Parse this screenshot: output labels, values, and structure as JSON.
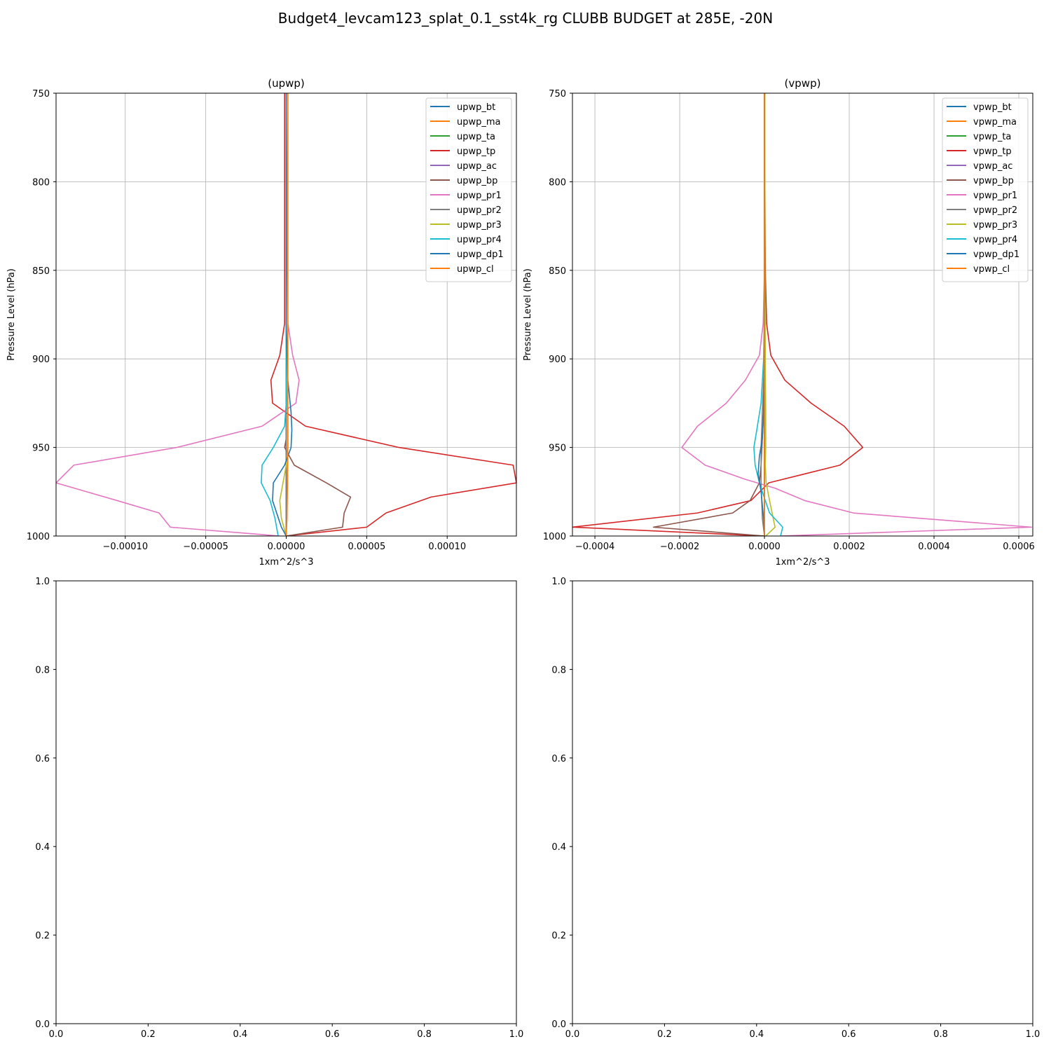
{
  "figure": {
    "title": "Budget4_levcam123_splat_0.1_sst4k_rg CLUBB BUDGET at 285E, -20N"
  },
  "colors": {
    "c0": "#1f77b4",
    "c1": "#ff7f0e",
    "c2": "#2ca02c",
    "c3": "#d62728",
    "c4": "#9467bd",
    "c5": "#8c564b",
    "c6": "#e377c2",
    "c7": "#7f7f7f",
    "c8": "#bcbd22",
    "c9": "#17becf",
    "grid": "#b0b0b0"
  },
  "chart_data": [
    {
      "type": "line",
      "title": "(upwp)",
      "xlabel": "1xm^2/s^3",
      "ylabel": "Pressure Level (hPa)",
      "xlim": [
        -0.000143,
        0.000143
      ],
      "ylim": [
        1000,
        750
      ],
      "xticks": [
        -0.0001,
        -5e-05,
        0,
        5e-05,
        0.0001
      ],
      "xtick_labels": [
        "−0.00010",
        "−0.00005",
        "0.00000",
        "0.00005",
        "0.00010"
      ],
      "yticks": [
        750,
        800,
        850,
        900,
        950,
        1000
      ],
      "ytick_labels": [
        "750",
        "800",
        "850",
        "900",
        "950",
        "1000"
      ],
      "grid": true,
      "legend_position": "top-right",
      "series": [
        {
          "name": "upwp_bt",
          "color": "#1f77b4",
          "x": [
            0,
            0,
            0,
            0,
            0,
            0,
            0,
            0,
            0,
            0
          ],
          "y": [
            750,
            850,
            900,
            930,
            950,
            960,
            970,
            985,
            995,
            1000
          ]
        },
        {
          "name": "upwp_ma",
          "color": "#ff7f0e",
          "x": [
            0,
            0,
            0,
            0,
            0,
            0,
            0,
            0,
            0,
            0
          ],
          "y": [
            750,
            850,
            900,
            930,
            950,
            960,
            970,
            985,
            995,
            1000
          ]
        },
        {
          "name": "upwp_ta",
          "color": "#2ca02c",
          "x": [
            0,
            0,
            0,
            0,
            0,
            0,
            0,
            0,
            0,
            0
          ],
          "y": [
            750,
            850,
            900,
            930,
            950,
            960,
            970,
            985,
            995,
            1000
          ]
        },
        {
          "name": "upwp_tp",
          "color": "#d62728",
          "x": [
            -1e-06,
            -1e-06,
            -1e-06,
            -4e-06,
            -9.5e-06,
            -8.5e-06,
            1.2e-05,
            7e-05,
            0.000141,
            0.000143,
            9e-05,
            6.2e-05,
            5e-05,
            0
          ],
          "y": [
            750,
            850,
            880,
            898,
            912,
            925,
            938,
            950,
            960,
            970,
            978,
            987,
            995,
            1000
          ]
        },
        {
          "name": "upwp_ac",
          "color": "#9467bd",
          "x": [
            0,
            0,
            0,
            0,
            0,
            0,
            0,
            0
          ],
          "y": [
            750,
            850,
            900,
            930,
            950,
            970,
            990,
            1000
          ]
        },
        {
          "name": "upwp_bp",
          "color": "#8c564b",
          "x": [
            0,
            0,
            0,
            0,
            0,
            -1e-06,
            5e-06,
            2.5e-05,
            4e-05,
            3.6e-05,
            3.5e-05,
            0
          ],
          "y": [
            750,
            850,
            900,
            930,
            945,
            950,
            960,
            970,
            978,
            987,
            995,
            1000
          ]
        },
        {
          "name": "upwp_pr1",
          "color": "#e377c2",
          "x": [
            0,
            1e-06,
            4e-06,
            8e-06,
            6e-06,
            -1.5e-05,
            -6.8e-05,
            -0.000132,
            -0.000143,
            -0.000105,
            -7.9e-05,
            -7.2e-05,
            -4e-06
          ],
          "y": [
            750,
            880,
            898,
            912,
            925,
            938,
            950,
            960,
            970,
            980,
            987,
            995,
            1000
          ]
        },
        {
          "name": "upwp_pr2",
          "color": "#7f7f7f",
          "x": [
            0,
            0,
            0,
            0,
            0,
            0,
            0,
            0
          ],
          "y": [
            750,
            850,
            900,
            930,
            950,
            970,
            990,
            1000
          ]
        },
        {
          "name": "upwp_pr3",
          "color": "#bcbd22",
          "x": [
            0,
            0,
            0,
            1e-06,
            1e-06,
            0,
            -2e-06,
            -4e-06,
            -3e-06,
            0
          ],
          "y": [
            750,
            850,
            900,
            930,
            950,
            960,
            970,
            980,
            990,
            1000
          ]
        },
        {
          "name": "upwp_pr4",
          "color": "#17becf",
          "x": [
            0,
            0,
            0,
            -1e-06,
            -8e-06,
            -1.5e-05,
            -1.55e-05,
            -1e-05,
            -7e-06,
            -5e-06
          ],
          "y": [
            750,
            880,
            925,
            938,
            950,
            960,
            970,
            980,
            990,
            1000
          ]
        },
        {
          "name": "upwp_dp1",
          "color": "#1f77b4",
          "x": [
            0,
            0,
            1e-06,
            3e-06,
            3.5e-06,
            3e-06,
            -1e-06,
            -8e-06,
            -8.5e-06,
            -3e-06,
            0
          ],
          "y": [
            750,
            880,
            912,
            930,
            940,
            950,
            960,
            970,
            980,
            995,
            1000
          ]
        },
        {
          "name": "upwp_cl",
          "color": "#ff7f0e",
          "x": [
            1e-06,
            1e-06,
            1e-06,
            1e-06,
            1e-06,
            8e-07,
            5e-07,
            0
          ],
          "y": [
            750,
            850,
            900,
            930,
            950,
            970,
            990,
            1000
          ]
        }
      ]
    },
    {
      "type": "line",
      "title": "(vpwp)",
      "xlabel": "1xm^2/s^3",
      "ylabel": "Pressure Level (hPa)",
      "xlim": [
        -0.000453,
        0.000633
      ],
      "ylim": [
        1000,
        750
      ],
      "xticks": [
        -0.0004,
        -0.0002,
        0,
        0.0002,
        0.0004,
        0.0006
      ],
      "xtick_labels": [
        "−0.0004",
        "−0.0002",
        "0.0000",
        "0.0002",
        "0.0004",
        "0.0006"
      ],
      "yticks": [
        750,
        800,
        850,
        900,
        950,
        1000
      ],
      "ytick_labels": [
        "750",
        "800",
        "850",
        "900",
        "950",
        "1000"
      ],
      "grid": true,
      "legend_position": "top-right",
      "series": [
        {
          "name": "vpwp_bt",
          "color": "#1f77b4",
          "x": [
            0,
            0,
            0,
            0,
            0,
            0,
            0,
            0
          ],
          "y": [
            750,
            850,
            900,
            930,
            950,
            970,
            990,
            1000
          ]
        },
        {
          "name": "vpwp_ma",
          "color": "#ff7f0e",
          "x": [
            0,
            0,
            0,
            0,
            0,
            0,
            0,
            0
          ],
          "y": [
            750,
            850,
            900,
            930,
            950,
            970,
            990,
            1000
          ]
        },
        {
          "name": "vpwp_ta",
          "color": "#2ca02c",
          "x": [
            0,
            0,
            0,
            0,
            0,
            0,
            0,
            0
          ],
          "y": [
            750,
            850,
            900,
            930,
            950,
            970,
            990,
            1000
          ]
        },
        {
          "name": "vpwp_tp",
          "color": "#d62728",
          "x": [
            0,
            2e-06,
            5e-06,
            1.5e-05,
            4.8e-05,
            0.00011,
            0.000188,
            0.000232,
            0.000178,
            1e-05,
            -3.2e-05,
            -0.000158,
            -0.000453,
            0
          ],
          "y": [
            750,
            850,
            880,
            898,
            912,
            925,
            938,
            950,
            960,
            970,
            980,
            987,
            995,
            1000
          ]
        },
        {
          "name": "vpwp_ac",
          "color": "#9467bd",
          "x": [
            0,
            0,
            0,
            0,
            0,
            0,
            0,
            0
          ],
          "y": [
            750,
            850,
            900,
            930,
            950,
            970,
            990,
            1000
          ]
        },
        {
          "name": "vpwp_bp",
          "color": "#8c564b",
          "x": [
            0,
            0,
            0,
            -2e-06,
            -5e-06,
            -8e-06,
            -1.2e-05,
            -3.4e-05,
            -7.5e-05,
            -0.000262,
            0
          ],
          "y": [
            750,
            850,
            900,
            930,
            945,
            960,
            970,
            980,
            987,
            995,
            1000
          ]
        },
        {
          "name": "vpwp_pr1",
          "color": "#e377c2",
          "x": [
            0,
            0,
            -3e-06,
            -1.2e-05,
            -4.5e-05,
            -9e-05,
            -0.000158,
            -0.000195,
            -0.00014,
            -4.5e-05,
            2.5e-05,
            9.5e-05,
            0.00021,
            0.00063,
            3.8e-05
          ],
          "y": [
            750,
            850,
            880,
            898,
            912,
            925,
            938,
            950,
            960,
            968,
            973,
            980,
            987,
            995,
            1000
          ]
        },
        {
          "name": "vpwp_pr2",
          "color": "#7f7f7f",
          "x": [
            0,
            0,
            0,
            -5e-06,
            -8e-06,
            -8e-06,
            -5e-06,
            0
          ],
          "y": [
            750,
            850,
            900,
            930,
            950,
            970,
            990,
            1000
          ]
        },
        {
          "name": "vpwp_pr3",
          "color": "#bcbd22",
          "x": [
            1e-06,
            1e-06,
            2e-06,
            3e-06,
            3e-06,
            2e-06,
            4e-06,
            1.2e-05,
            2.5e-05,
            3e-06
          ],
          "y": [
            750,
            850,
            900,
            930,
            950,
            960,
            970,
            980,
            995,
            1000
          ]
        },
        {
          "name": "vpwp_pr4",
          "color": "#17becf",
          "x": [
            0,
            0,
            -2e-06,
            -8e-06,
            -1.8e-05,
            -2.5e-05,
            -2.2e-05,
            -1.2e-05,
            2e-06,
            1.2e-05,
            4.3e-05,
            3.8e-05
          ],
          "y": [
            750,
            870,
            900,
            925,
            940,
            950,
            960,
            970,
            980,
            987,
            995,
            1000
          ]
        },
        {
          "name": "vpwp_dp1",
          "color": "#1f77b4",
          "x": [
            0,
            0,
            -2e-06,
            -5e-06,
            -1.2e-05,
            -1.5e-05,
            -8e-06,
            -2e-06,
            0
          ],
          "y": [
            750,
            900,
            930,
            945,
            955,
            965,
            975,
            990,
            1000
          ]
        },
        {
          "name": "vpwp_cl",
          "color": "#ff7f0e",
          "x": [
            0,
            0,
            0,
            0,
            0,
            0,
            0,
            0
          ],
          "y": [
            750,
            850,
            900,
            930,
            950,
            970,
            990,
            1000
          ]
        }
      ]
    },
    {
      "type": "line",
      "title": "",
      "xlim": [
        0,
        1
      ],
      "ylim": [
        0,
        1
      ],
      "xticks": [
        0,
        0.2,
        0.4,
        0.6,
        0.8,
        1.0
      ],
      "xtick_labels": [
        "0.0",
        "0.2",
        "0.4",
        "0.6",
        "0.8",
        "1.0"
      ],
      "yticks": [
        0,
        0.2,
        0.4,
        0.6,
        0.8,
        1.0
      ],
      "ytick_labels": [
        "0.0",
        "0.2",
        "0.4",
        "0.6",
        "0.8",
        "1.0"
      ],
      "grid": false,
      "series": []
    },
    {
      "type": "line",
      "title": "",
      "xlim": [
        0,
        1
      ],
      "ylim": [
        0,
        1
      ],
      "xticks": [
        0,
        0.2,
        0.4,
        0.6,
        0.8,
        1.0
      ],
      "xtick_labels": [
        "0.0",
        "0.2",
        "0.4",
        "0.6",
        "0.8",
        "1.0"
      ],
      "yticks": [
        0,
        0.2,
        0.4,
        0.6,
        0.8,
        1.0
      ],
      "ytick_labels": [
        "0.0",
        "0.2",
        "0.4",
        "0.6",
        "0.8",
        "1.0"
      ],
      "grid": false,
      "series": []
    }
  ]
}
